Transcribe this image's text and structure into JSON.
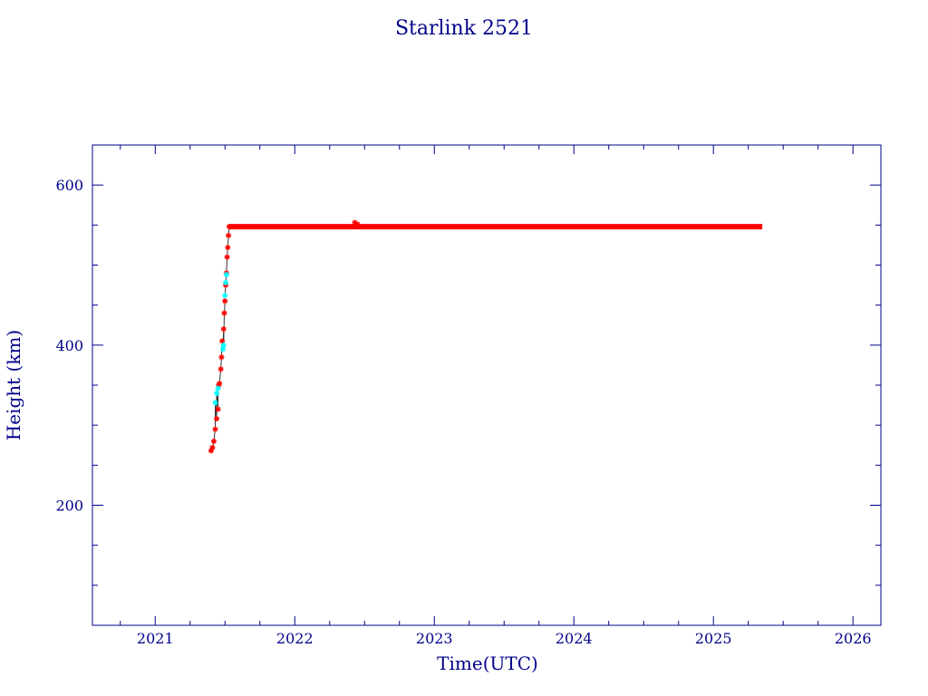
{
  "chart_data": {
    "type": "scatter",
    "title": "Starlink 2521",
    "xlabel": "Time(UTC)",
    "ylabel": "Height (km)",
    "xlim": [
      2020.55,
      2026.2
    ],
    "ylim": [
      50,
      650
    ],
    "x_ticks": [
      2021,
      2022,
      2023,
      2024,
      2025,
      2026
    ],
    "y_ticks": [
      200,
      400,
      600
    ],
    "grid": false,
    "colors": {
      "axis": "#00008b",
      "text": "#00008b",
      "primary_points": "#ff0000",
      "secondary_points": "#00ffff",
      "link_line": "#333333"
    },
    "series": [
      {
        "color": "#ff0000",
        "marker": "asterisk",
        "points": [
          [
            2021.4,
            268
          ],
          [
            2021.41,
            272
          ],
          [
            2021.42,
            280
          ],
          [
            2021.43,
            295
          ],
          [
            2021.44,
            308
          ],
          [
            2021.45,
            320
          ],
          [
            2021.455,
            350
          ],
          [
            2021.46,
            352
          ],
          [
            2021.47,
            370
          ],
          [
            2021.475,
            385
          ],
          [
            2021.48,
            405
          ],
          [
            2021.49,
            420
          ],
          [
            2021.495,
            440
          ],
          [
            2021.5,
            455
          ],
          [
            2021.505,
            475
          ],
          [
            2021.51,
            490
          ],
          [
            2021.515,
            510
          ],
          [
            2021.52,
            522
          ],
          [
            2021.525,
            537
          ],
          [
            2021.53,
            548
          ],
          [
            2022.43,
            553
          ],
          [
            2022.45,
            551
          ]
        ],
        "plateau": {
          "x_start": 2021.53,
          "x_end": 2025.35,
          "y": 548
        }
      },
      {
        "color": "#00ffff",
        "marker": "asterisk",
        "points": [
          [
            2021.43,
            328
          ],
          [
            2021.44,
            340
          ],
          [
            2021.45,
            346
          ],
          [
            2021.485,
            395
          ],
          [
            2021.49,
            400
          ],
          [
            2021.5,
            462
          ],
          [
            2021.505,
            478
          ],
          [
            2021.51,
            488
          ]
        ]
      }
    ]
  }
}
